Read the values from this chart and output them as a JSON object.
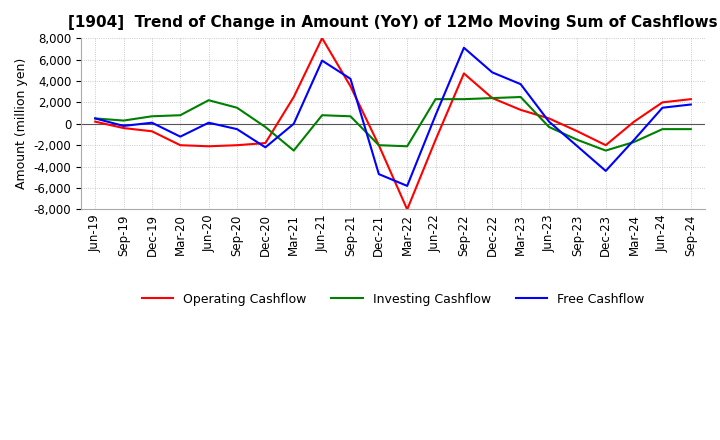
{
  "title": "[1904]  Trend of Change in Amount (YoY) of 12Mo Moving Sum of Cashflows",
  "ylabel": "Amount (million yen)",
  "ylim": [
    -8000,
    8000
  ],
  "yticks": [
    -8000,
    -6000,
    -4000,
    -2000,
    0,
    2000,
    4000,
    6000,
    8000
  ],
  "x_labels": [
    "Jun-19",
    "Sep-19",
    "Dec-19",
    "Mar-20",
    "Jun-20",
    "Sep-20",
    "Dec-20",
    "Mar-21",
    "Jun-21",
    "Sep-21",
    "Dec-21",
    "Mar-22",
    "Jun-22",
    "Sep-22",
    "Dec-22",
    "Mar-23",
    "Jun-23",
    "Sep-23",
    "Dec-23",
    "Mar-24",
    "Jun-24",
    "Sep-24"
  ],
  "operating": [
    200,
    -400,
    -700,
    -2000,
    -2100,
    -2000,
    -1800,
    2500,
    8000,
    3500,
    -2000,
    -8000,
    -1500,
    4700,
    2400,
    1300,
    500,
    -700,
    -2000,
    200,
    2000,
    2300
  ],
  "investing": [
    500,
    300,
    700,
    800,
    2200,
    1500,
    -300,
    -2500,
    800,
    700,
    -2000,
    -2100,
    2300,
    2300,
    2400,
    2500,
    -300,
    -1500,
    -2500,
    -1700,
    -500,
    -500
  ],
  "free": [
    500,
    -200,
    100,
    -1200,
    100,
    -500,
    -2200,
    0,
    5900,
    4200,
    -4700,
    -5800,
    800,
    7100,
    4800,
    3700,
    200,
    -2100,
    -4400,
    -1500,
    1500,
    1800
  ],
  "op_color": "#ff0000",
  "inv_color": "#008000",
  "free_color": "#0000ff",
  "background_color": "#ffffff",
  "grid_color": "#bbbbbb",
  "title_fontsize": 11,
  "label_fontsize": 9,
  "tick_fontsize": 8.5
}
